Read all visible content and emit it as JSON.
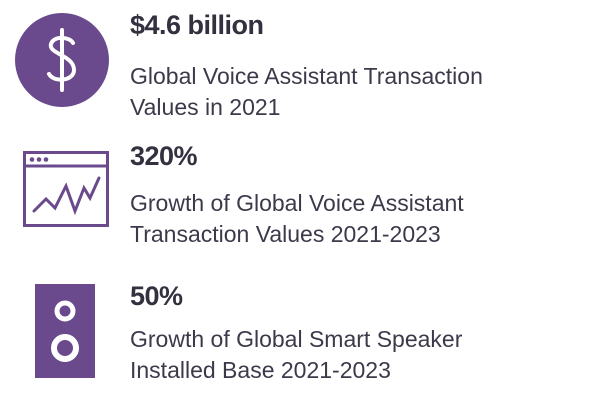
{
  "colors": {
    "accent": "#6a4a8c",
    "text": "#3b3a4a"
  },
  "stats": [
    {
      "icon": "dollar-circle-icon",
      "value": "$4.6 billion",
      "description_lines": [
        "Global Voice Assistant Transaction",
        "Values in 2021"
      ]
    },
    {
      "icon": "browser-line-chart-icon",
      "value": "320%",
      "description_lines": [
        "Growth of Global Voice Assistant",
        "Transaction Values 2021-2023"
      ]
    },
    {
      "icon": "speaker-icon",
      "value": "50%",
      "description_lines": [
        "Growth of Global Smart Speaker",
        "Installed Base 2021-2023"
      ]
    }
  ]
}
